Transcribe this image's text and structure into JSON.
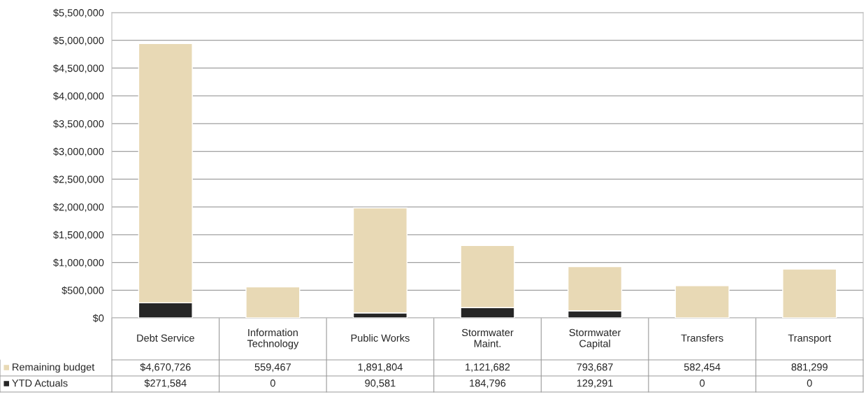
{
  "chart_data": {
    "type": "bar",
    "stacked": true,
    "categories": [
      "Debt Service",
      "Information Technology",
      "Public Works",
      "Stormwater Maint.",
      "Stormwater Capital",
      "Transfers",
      "Transport"
    ],
    "series": [
      {
        "name": "YTD Actuals",
        "color": "#262626",
        "values": [
          271584,
          0,
          90581,
          184796,
          129291,
          0,
          0
        ],
        "value_labels": [
          "$271,584",
          "0",
          "90,581",
          "184,796",
          "129,291",
          "0",
          "0"
        ]
      },
      {
        "name": "Remaining budget",
        "color": "#e8d9b5",
        "values": [
          4670726,
          559467,
          1891804,
          1121682,
          793687,
          582454,
          881299
        ],
        "value_labels": [
          "$4,670,726",
          "559,467",
          "1,891,804",
          "1,121,682",
          "793,687",
          "582,454",
          "881,299"
        ]
      }
    ],
    "ylim": [
      0,
      5500000
    ],
    "yticks": [
      {
        "value": 0,
        "label": "$0"
      },
      {
        "value": 500000,
        "label": "$500,000"
      },
      {
        "value": 1000000,
        "label": "$1,000,000"
      },
      {
        "value": 1500000,
        "label": "$1,500,000"
      },
      {
        "value": 2000000,
        "label": "$2,000,000"
      },
      {
        "value": 2500000,
        "label": "$2,500,000"
      },
      {
        "value": 3000000,
        "label": "$3,000,000"
      },
      {
        "value": 3500000,
        "label": "$3,500,000"
      },
      {
        "value": 4000000,
        "label": "$4,000,000"
      },
      {
        "value": 4500000,
        "label": "$4,500,000"
      },
      {
        "value": 5000000,
        "label": "$5,000,000"
      },
      {
        "value": 5500000,
        "label": "$5,500,000"
      }
    ],
    "grid": "y",
    "legend": "bottom"
  }
}
